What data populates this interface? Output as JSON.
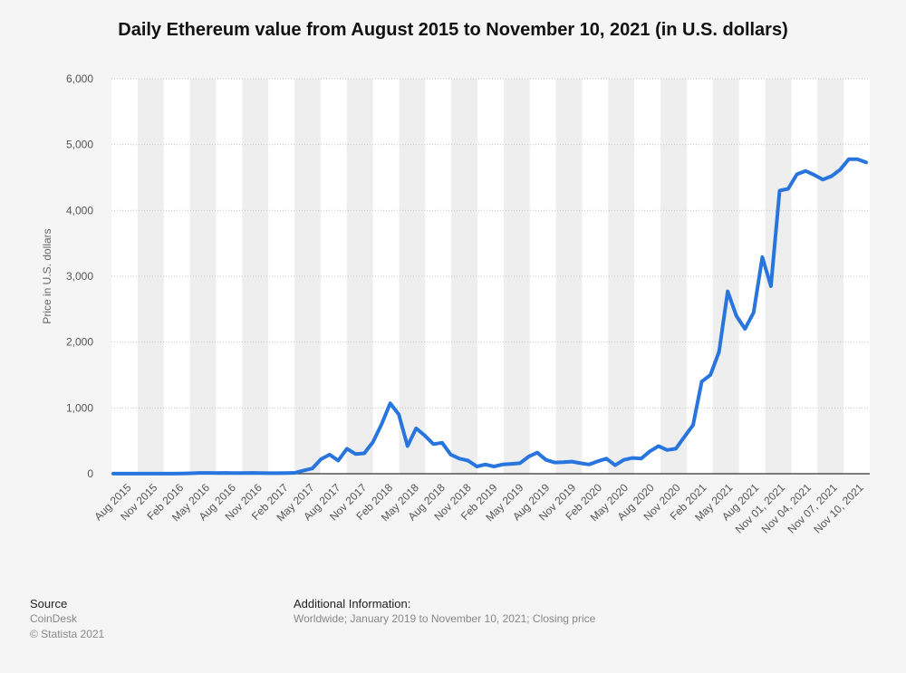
{
  "chart_data": {
    "type": "line",
    "title": "Daily Ethereum value from August 2015 to November 10, 2021 (in U.S. dollars)",
    "ylabel": "Price in U.S. dollars",
    "xlabel": "",
    "ylim": [
      0,
      6000
    ],
    "yticks": [
      0,
      1000,
      2000,
      3000,
      4000,
      5000,
      6000
    ],
    "ytick_labels": [
      "0",
      "1,000",
      "2,000",
      "3,000",
      "4,000",
      "5,000",
      "6,000"
    ],
    "x_labels": [
      "Aug 2015",
      "Nov 2015",
      "Feb 2016",
      "May 2016",
      "Aug 2016",
      "Nov 2016",
      "Feb 2017",
      "May 2017",
      "Aug 2017",
      "Nov 2017",
      "Feb 2018",
      "May 2018",
      "Aug 2018",
      "Nov 2018",
      "Feb 2019",
      "May 2019",
      "Aug 2019",
      "Nov 2019",
      "Feb 2020",
      "May 2020",
      "Aug 2020",
      "Nov 2020",
      "Feb 2021",
      "May 2021",
      "Aug 2021",
      "Nov 01, 2021",
      "Nov 04, 2021",
      "Nov 07, 2021",
      "Nov 10, 2021"
    ],
    "grid": true,
    "legend": "none",
    "line_color": "#2876dd",
    "series": [
      {
        "values": [
          2,
          1,
          1,
          1,
          2,
          2,
          1,
          1,
          3,
          7,
          12,
          12,
          11,
          12,
          10,
          10,
          12,
          10,
          8,
          8,
          11,
          14,
          50,
          80,
          220,
          290,
          200,
          380,
          300,
          310,
          480,
          750,
          1070,
          900,
          420,
          690,
          580,
          450,
          470,
          290,
          230,
          200,
          110,
          140,
          110,
          140,
          150,
          160,
          260,
          320,
          210,
          170,
          175,
          185,
          160,
          140,
          190,
          230,
          130,
          210,
          240,
          230,
          340,
          420,
          360,
          380,
          560,
          740,
          1400,
          1500,
          1850,
          2770,
          2400,
          2200,
          2450,
          3290,
          2850,
          4300,
          4330,
          4550,
          4600,
          4540,
          4470,
          4520,
          4620,
          4780,
          4780,
          4730
        ]
      }
    ]
  },
  "footer": {
    "source_heading": "Source",
    "source_name": "CoinDesk",
    "copyright": "© Statista 2021",
    "info_heading": "Additional Information:",
    "info_text": "Worldwide; January 2019 to November 10, 2021; Closing price"
  }
}
